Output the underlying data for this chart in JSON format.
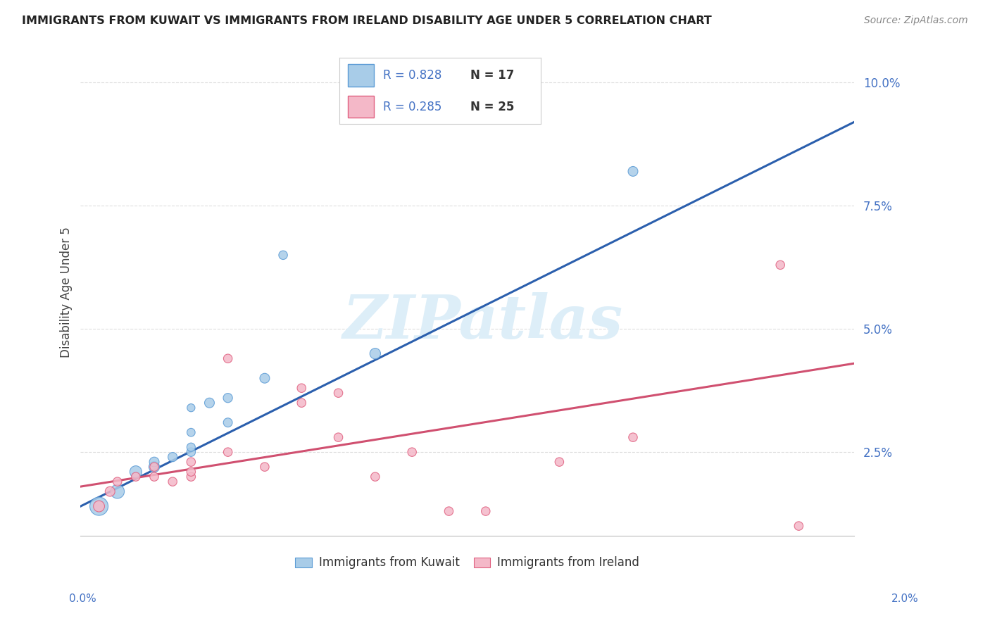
{
  "title": "IMMIGRANTS FROM KUWAIT VS IMMIGRANTS FROM IRELAND DISABILITY AGE UNDER 5 CORRELATION CHART",
  "source": "Source: ZipAtlas.com",
  "ylabel": "Disability Age Under 5",
  "ytick_values": [
    0.025,
    0.05,
    0.075,
    0.1
  ],
  "ytick_labels": [
    "2.5%",
    "5.0%",
    "7.5%",
    "10.0%"
  ],
  "xlim": [
    0.0,
    0.021
  ],
  "ylim": [
    0.008,
    0.107
  ],
  "legend_blue_r": "R = 0.828",
  "legend_blue_n": "N = 17",
  "legend_pink_r": "R = 0.285",
  "legend_pink_n": "N = 25",
  "blue_scatter_x": [
    0.0005,
    0.001,
    0.0015,
    0.002,
    0.002,
    0.0025,
    0.003,
    0.003,
    0.003,
    0.003,
    0.0035,
    0.004,
    0.004,
    0.005,
    0.0055,
    0.008,
    0.015
  ],
  "blue_scatter_y": [
    0.014,
    0.017,
    0.021,
    0.022,
    0.023,
    0.024,
    0.025,
    0.026,
    0.029,
    0.034,
    0.035,
    0.036,
    0.031,
    0.04,
    0.065,
    0.045,
    0.082
  ],
  "blue_scatter_sizes": [
    350,
    200,
    150,
    120,
    100,
    90,
    80,
    75,
    70,
    65,
    100,
    90,
    85,
    100,
    80,
    120,
    100
  ],
  "pink_scatter_x": [
    0.0005,
    0.0008,
    0.001,
    0.0015,
    0.002,
    0.002,
    0.0025,
    0.003,
    0.003,
    0.003,
    0.004,
    0.004,
    0.005,
    0.006,
    0.006,
    0.007,
    0.007,
    0.008,
    0.009,
    0.01,
    0.011,
    0.013,
    0.015,
    0.019,
    0.0195
  ],
  "pink_scatter_y": [
    0.014,
    0.017,
    0.019,
    0.02,
    0.02,
    0.022,
    0.019,
    0.02,
    0.021,
    0.023,
    0.025,
    0.044,
    0.022,
    0.035,
    0.038,
    0.037,
    0.028,
    0.02,
    0.025,
    0.013,
    0.013,
    0.023,
    0.028,
    0.063,
    0.01
  ],
  "pink_scatter_sizes": [
    130,
    100,
    80,
    80,
    80,
    80,
    80,
    80,
    80,
    80,
    80,
    80,
    80,
    80,
    80,
    80,
    80,
    80,
    80,
    80,
    80,
    80,
    80,
    80,
    80
  ],
  "blue_line_x": [
    0.0,
    0.021
  ],
  "blue_line_y": [
    0.014,
    0.092
  ],
  "pink_line_x": [
    0.0,
    0.021
  ],
  "pink_line_y": [
    0.018,
    0.043
  ],
  "blue_scatter_color": "#a8cce8",
  "blue_scatter_edge": "#5b9bd5",
  "pink_scatter_color": "#f4b8c8",
  "pink_scatter_edge": "#e06080",
  "blue_line_color": "#2b5fad",
  "pink_line_color": "#d05070",
  "watermark_text": "ZIPatlas",
  "watermark_color": "#ddeef8",
  "background_color": "#ffffff",
  "grid_color": "#dddddd",
  "title_color": "#222222",
  "ytick_color": "#4472c4",
  "xtick_color": "#4472c4",
  "legend_text_color_blue": "#4472c4",
  "legend_text_color_pink": "#e06080",
  "legend_n_color": "#333333"
}
